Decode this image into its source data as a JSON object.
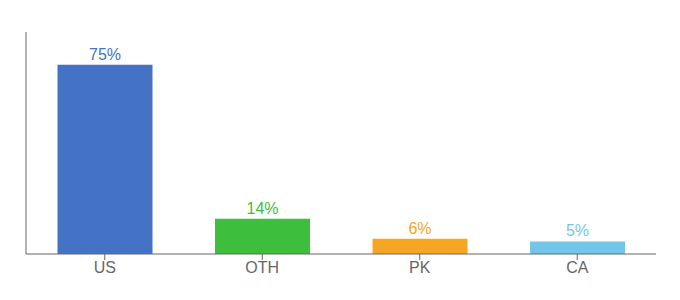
{
  "chart_data": {
    "type": "bar",
    "categories": [
      "US",
      "OTH",
      "PK",
      "CA"
    ],
    "values": [
      75,
      14,
      6,
      5
    ],
    "value_labels": [
      "75%",
      "14%",
      "6%",
      "5%"
    ],
    "colors": [
      "#4472c4",
      "#3dbf3d",
      "#f5a623",
      "#74c6e8"
    ],
    "ylim": [
      0,
      88
    ],
    "data_labels": true,
    "tick_labels": "x"
  }
}
